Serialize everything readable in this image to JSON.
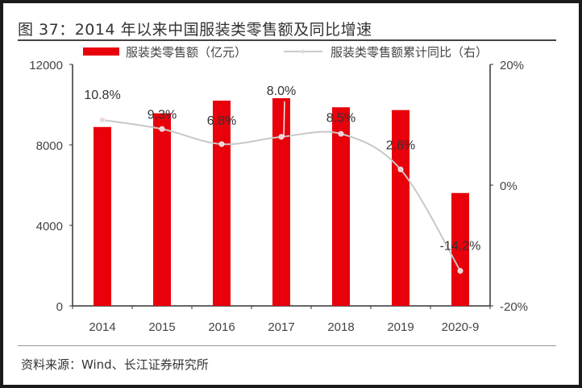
{
  "title": "图 37：2014 年以来中国服装类零售额及同比增速",
  "source": "资料来源：Wind、长江证券研究所",
  "colors": {
    "bar": "#e8000b",
    "line": "#c8c8c8",
    "marker": "#f4d0d0"
  },
  "chart_data": {
    "type": "bar+line",
    "title": "图 37：2014 年以来中国服装类零售额及同比增速",
    "categories": [
      "2014",
      "2015",
      "2016",
      "2017",
      "2018",
      "2019",
      "2020-9"
    ],
    "series": [
      {
        "name": "服装类零售额（亿元）",
        "type": "bar",
        "axis": "left",
        "values": [
          8890,
          9570,
          10200,
          10320,
          9870,
          9730,
          5610
        ]
      },
      {
        "name": "服装类零售额累计同比（右）",
        "type": "line",
        "axis": "right",
        "values": [
          10.8,
          9.3,
          6.8,
          8.0,
          8.5,
          2.6,
          -14.2
        ],
        "labels": [
          "10.8%",
          "9.3%",
          "6.8%",
          "8.0%",
          "8.5%",
          "2.6%",
          "-14.2%"
        ]
      }
    ],
    "y_left": {
      "range": [
        0,
        12000
      ],
      "ticks": [
        "0",
        "4000",
        "8000",
        "12000"
      ]
    },
    "y_right": {
      "range": [
        -20,
        20
      ],
      "ticks": [
        "-20%",
        "0%",
        "20%"
      ]
    },
    "grid": false,
    "legend": "top"
  }
}
